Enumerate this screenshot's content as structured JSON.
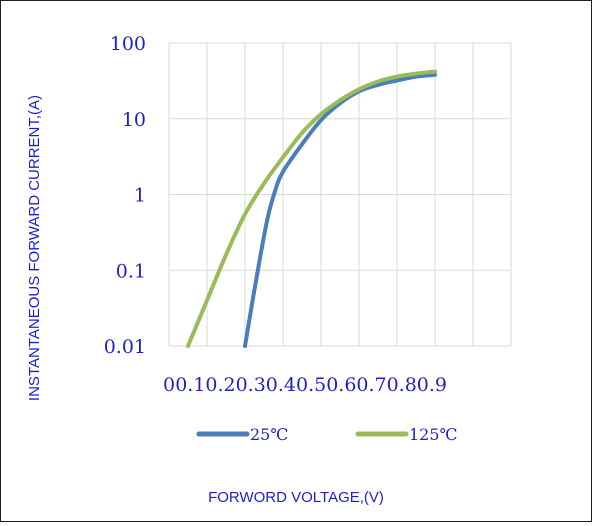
{
  "chart_data": {
    "type": "line",
    "title": "",
    "xlabel": "FORWORD VOLTAGE,(V)",
    "ylabel": "INSTANTANEOUS FORWARD CURRENT,(A)",
    "xlim": [
      0,
      0.9
    ],
    "ylim": [
      0.01,
      100
    ],
    "y_scale": "log",
    "grid": true,
    "legend_position": "bottom",
    "x_tick_labels": [
      "0",
      "0.1",
      "0.2",
      "0.3",
      "0.4",
      "0.5",
      "0.6",
      "0.7",
      "0.8",
      "0.9"
    ],
    "x_tick_values": [
      0,
      0.1,
      0.2,
      0.3,
      0.4,
      0.5,
      0.6,
      0.7,
      0.8,
      0.9
    ],
    "y_tick_labels": [
      "0.01",
      "0.1",
      "1",
      "10",
      "100"
    ],
    "y_tick_values": [
      0.01,
      0.1,
      1,
      10,
      100
    ],
    "series": [
      {
        "name": "25℃",
        "color": "#4a7ebb",
        "x": [
          0.2,
          0.22,
          0.24,
          0.26,
          0.28,
          0.3,
          0.35,
          0.4,
          0.45,
          0.5,
          0.55,
          0.6,
          0.65,
          0.7
        ],
        "y": [
          0.01,
          0.04,
          0.15,
          0.5,
          1.15,
          2.0,
          4.6,
          9.6,
          16,
          23,
          28,
          32,
          36,
          38
        ]
      },
      {
        "name": "125℃",
        "color": "#9bbb59",
        "x": [
          0.05,
          0.1,
          0.15,
          0.2,
          0.25,
          0.3,
          0.35,
          0.4,
          0.45,
          0.5,
          0.55,
          0.6,
          0.65,
          0.7
        ],
        "y": [
          0.01,
          0.04,
          0.16,
          0.55,
          1.4,
          3.1,
          6.5,
          11.5,
          17.5,
          24.5,
          31,
          36,
          39.5,
          42
        ]
      }
    ]
  }
}
